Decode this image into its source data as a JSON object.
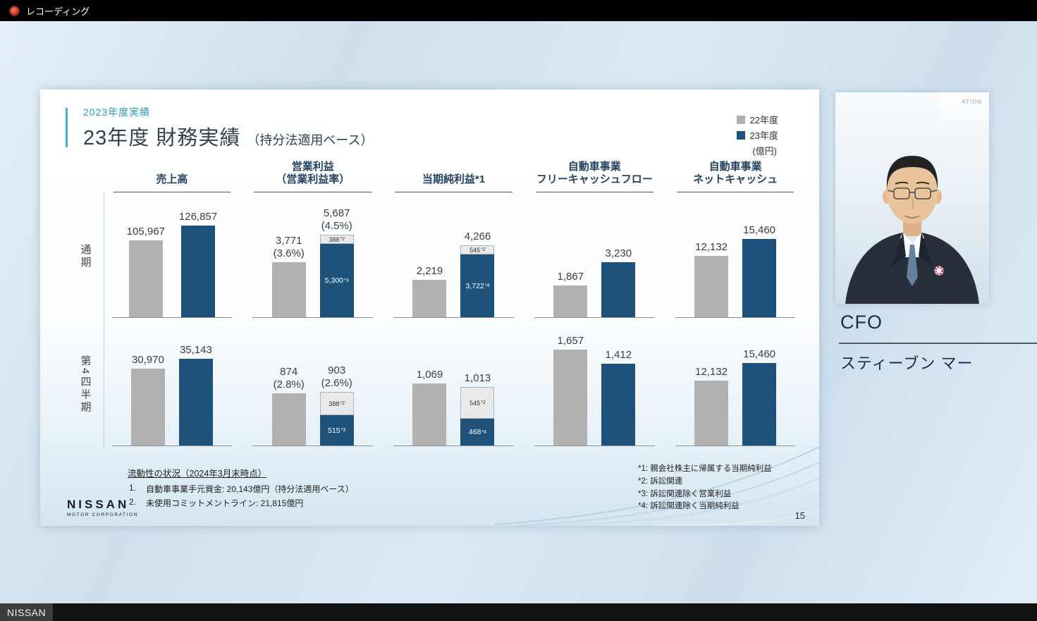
{
  "topbar": {
    "recording_label": "レコーディング"
  },
  "bottombar": {
    "label": "NISSAN"
  },
  "speaker": {
    "role": "CFO",
    "name": "スティーブン マー",
    "video_watermark": "ATION"
  },
  "slide": {
    "eyebrow": "2023年度実績",
    "title": "23年度 財務実績",
    "title_suffix": "（持分法適用ベース）",
    "page_number": "15",
    "logo": {
      "name": "NISSAN",
      "sub": "MOTOR CORPORATION"
    },
    "legend": {
      "items": [
        {
          "label": "22年度"
        },
        {
          "label": "23年度"
        }
      ],
      "unit": "(億円)"
    },
    "footnotes_left": {
      "heading": "流動性の状況（2024年3月末時点）",
      "items": [
        {
          "no": "1.",
          "text": "自動車事業手元資金: 20,143億円（持分法適用ベース）"
        },
        {
          "no": "2.",
          "text": "未使用コミットメントライン: 21,815億円"
        }
      ]
    },
    "footnotes_right": [
      "*1: 親会社株主に帰属する当期純利益",
      "*2: 訴訟関連",
      "*3: 訴訟関連除く営業利益",
      "*4: 訴訟関連除く当期純利益"
    ]
  },
  "chart_data": {
    "type": "bar",
    "unit": "億円",
    "legend_position": "top-right",
    "series": [
      "22年度",
      "23年度"
    ],
    "colors": {
      "22年度": "#b1b1b1",
      "23年度": "#1f527b",
      "hatch": "#e3e3e3"
    },
    "row_labels": [
      "通期",
      "第4四半期"
    ],
    "columns": [
      {
        "header": [
          "売上高"
        ],
        "cells": [
          {
            "row": "通期",
            "ylim": 140000,
            "bars": [
              {
                "series": "22年度",
                "value": 105967,
                "label": "105,967"
              },
              {
                "series": "23年度",
                "value": 126857,
                "label": "126,857"
              }
            ]
          },
          {
            "row": "第4四半期",
            "ylim": 41000,
            "bars": [
              {
                "series": "22年度",
                "value": 30970,
                "label": "30,970"
              },
              {
                "series": "23年度",
                "value": 35143,
                "label": "35,143"
              }
            ]
          }
        ]
      },
      {
        "header": [
          "営業利益",
          "（営業利益率）"
        ],
        "cells": [
          {
            "row": "通期",
            "ylim": 7000,
            "bars": [
              {
                "series": "22年度",
                "value": 3771,
                "label": "3,771",
                "sublabel": "(3.6%)"
              },
              {
                "series": "23年度",
                "value": 5687,
                "label": "5,687",
                "sublabel": "(4.5%)",
                "segments": [
                  {
                    "value": 388,
                    "label": "388",
                    "sup": "*2",
                    "style": "hatch"
                  },
                  {
                    "value": 5300,
                    "label": "5,300",
                    "sup": "*3",
                    "style": "solid"
                  }
                ]
              }
            ]
          },
          {
            "row": "第4四半期",
            "ylim": 1700,
            "bars": [
              {
                "series": "22年度",
                "value": 874,
                "label": "874",
                "sublabel": "(2.8%)"
              },
              {
                "series": "23年度",
                "value": 903,
                "label": "903",
                "sublabel": "(2.6%)",
                "segments": [
                  {
                    "value": 388,
                    "label": "388",
                    "sup": "*2",
                    "style": "hatch"
                  },
                  {
                    "value": 515,
                    "label": "515",
                    "sup": "*3",
                    "style": "solid"
                  }
                ]
              }
            ]
          }
        ]
      },
      {
        "header": [
          "当期純利益*1"
        ],
        "cells": [
          {
            "row": "通期",
            "ylim": 6000,
            "bars": [
              {
                "series": "22年度",
                "value": 2219,
                "label": "2,219"
              },
              {
                "series": "23年度",
                "value": 4266,
                "label": "4,266",
                "segments": [
                  {
                    "value": 545,
                    "label": "545",
                    "sup": "*2",
                    "style": "hatch"
                  },
                  {
                    "value": 3722,
                    "label": "3,722",
                    "sup": "*4",
                    "style": "solid"
                  }
                ]
              }
            ]
          },
          {
            "row": "第4四半期",
            "ylim": 1750,
            "bars": [
              {
                "series": "22年度",
                "value": 1069,
                "label": "1,069"
              },
              {
                "series": "23年度",
                "value": 1013,
                "label": "1,013",
                "segments": [
                  {
                    "value": 545,
                    "label": "545",
                    "sup": "*2",
                    "style": "hatch"
                  },
                  {
                    "value": 468,
                    "label": "468",
                    "sup": "*4",
                    "style": "solid"
                  }
                ]
              }
            ]
          }
        ]
      },
      {
        "header": [
          "自動車事業",
          "フリーキャッシュフロー"
        ],
        "cells": [
          {
            "row": "通期",
            "ylim": 6000,
            "bars": [
              {
                "series": "22年度",
                "value": 1867,
                "label": "1,867"
              },
              {
                "series": "23年度",
                "value": 3230,
                "label": "3,230"
              }
            ]
          },
          {
            "row": "第4四半期",
            "ylim": 1760,
            "bars": [
              {
                "series": "22年度",
                "value": 1657,
                "label": "1,657"
              },
              {
                "series": "23年度",
                "value": 1412,
                "label": "1,412"
              }
            ]
          }
        ]
      },
      {
        "header": [
          "自動車事業",
          "ネットキャッシュ"
        ],
        "cells": [
          {
            "row": "通期",
            "ylim": 20000,
            "bars": [
              {
                "series": "22年度",
                "value": 12132,
                "label": "12,132"
              },
              {
                "series": "23年度",
                "value": 15460,
                "label": "15,460"
              }
            ]
          },
          {
            "row": "第4四半期",
            "ylim": 19000,
            "bars": [
              {
                "series": "22年度",
                "value": 12132,
                "label": "12,132"
              },
              {
                "series": "23年度",
                "value": 15460,
                "label": "15,460"
              }
            ]
          }
        ]
      }
    ]
  }
}
